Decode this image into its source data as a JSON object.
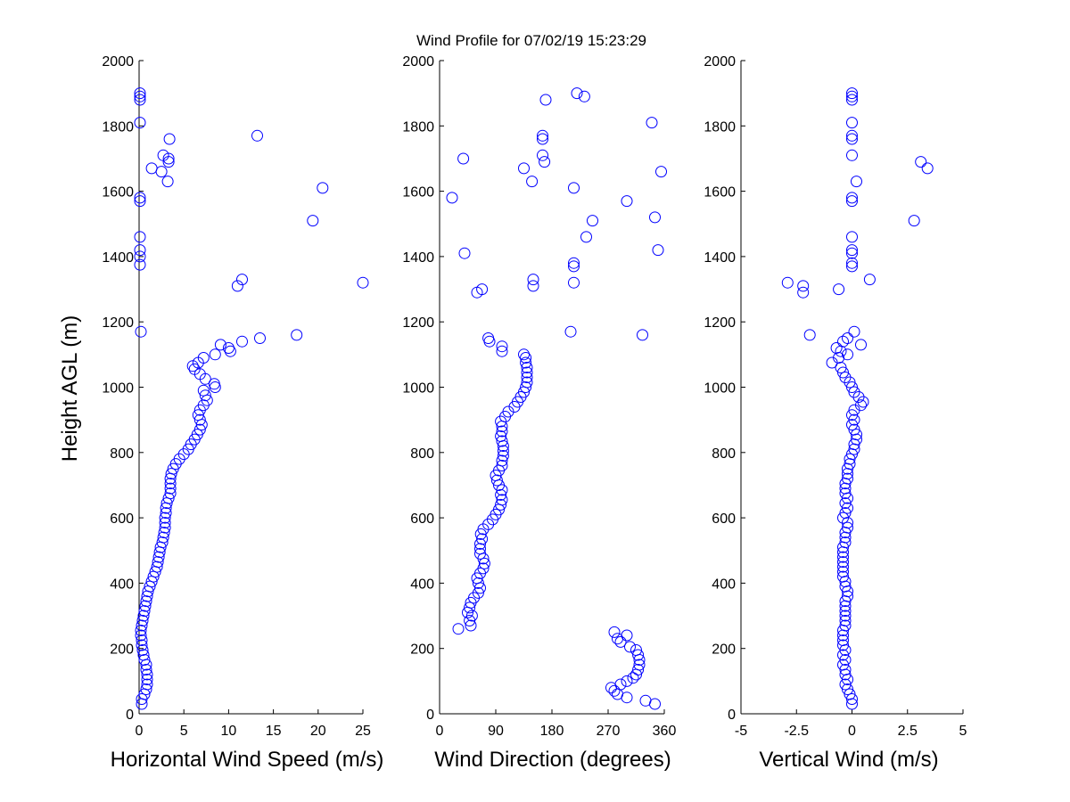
{
  "title": "Wind Profile for  07/02/19 15:23:29",
  "colors": {
    "marker": "#0000ff",
    "axis": "#000000",
    "background": "#ffffff"
  },
  "chart_data": [
    {
      "type": "scatter",
      "marker": "circle",
      "xlabel": "Horizontal Wind Speed (m/s)",
      "ylabel": "Height AGL (m)",
      "xlim": [
        0,
        25
      ],
      "ylim": [
        0,
        2000
      ],
      "xticks": [
        "0",
        "5",
        "10",
        "15",
        "20",
        "25"
      ],
      "yticks": [
        "0",
        "200",
        "400",
        "600",
        "800",
        "1000",
        "1200",
        "1400",
        "1600",
        "1800",
        "2000"
      ],
      "grid": false,
      "points": [
        [
          0.3,
          30
        ],
        [
          0.3,
          45
        ],
        [
          0.6,
          60
        ],
        [
          0.8,
          75
        ],
        [
          0.9,
          90
        ],
        [
          0.9,
          105
        ],
        [
          0.9,
          120
        ],
        [
          0.8,
          135
        ],
        [
          0.8,
          150
        ],
        [
          0.6,
          165
        ],
        [
          0.5,
          180
        ],
        [
          0.4,
          195
        ],
        [
          0.3,
          210
        ],
        [
          0.3,
          225
        ],
        [
          0.2,
          240
        ],
        [
          0.2,
          255
        ],
        [
          0.3,
          270
        ],
        [
          0.4,
          285
        ],
        [
          0.5,
          300
        ],
        [
          0.6,
          315
        ],
        [
          0.7,
          330
        ],
        [
          0.8,
          345
        ],
        [
          0.9,
          360
        ],
        [
          1.0,
          375
        ],
        [
          1.2,
          390
        ],
        [
          1.4,
          405
        ],
        [
          1.6,
          420
        ],
        [
          1.8,
          435
        ],
        [
          2.0,
          450
        ],
        [
          2.1,
          465
        ],
        [
          2.2,
          480
        ],
        [
          2.3,
          495
        ],
        [
          2.4,
          510
        ],
        [
          2.6,
          525
        ],
        [
          2.7,
          540
        ],
        [
          2.8,
          555
        ],
        [
          2.9,
          570
        ],
        [
          2.9,
          585
        ],
        [
          2.9,
          600
        ],
        [
          3.0,
          615
        ],
        [
          3.0,
          630
        ],
        [
          3.1,
          645
        ],
        [
          3.3,
          660
        ],
        [
          3.5,
          675
        ],
        [
          3.5,
          690
        ],
        [
          3.5,
          705
        ],
        [
          3.5,
          720
        ],
        [
          3.6,
          735
        ],
        [
          3.8,
          750
        ],
        [
          4.1,
          765
        ],
        [
          4.5,
          780
        ],
        [
          5.0,
          795
        ],
        [
          5.5,
          810
        ],
        [
          5.8,
          825
        ],
        [
          6.2,
          840
        ],
        [
          6.5,
          855
        ],
        [
          6.8,
          870
        ],
        [
          7.0,
          885
        ],
        [
          6.8,
          900
        ],
        [
          6.6,
          915
        ],
        [
          6.8,
          930
        ],
        [
          7.2,
          945
        ],
        [
          7.6,
          960
        ],
        [
          7.4,
          975
        ],
        [
          7.2,
          990
        ],
        [
          8.5,
          1000
        ],
        [
          8.4,
          1010
        ],
        [
          7.4,
          1025
        ],
        [
          6.8,
          1040
        ],
        [
          6.2,
          1055
        ],
        [
          6.0,
          1065
        ],
        [
          6.6,
          1075
        ],
        [
          7.2,
          1090
        ],
        [
          8.5,
          1100
        ],
        [
          10.2,
          1110
        ],
        [
          10.0,
          1120
        ],
        [
          9.1,
          1130
        ],
        [
          11.5,
          1140
        ],
        [
          13.5,
          1150
        ],
        [
          17.6,
          1160
        ],
        [
          0.2,
          1170
        ],
        [
          11.0,
          1310
        ],
        [
          11.5,
          1330
        ],
        [
          25.0,
          1320
        ],
        [
          0.1,
          1375
        ],
        [
          0.1,
          1400
        ],
        [
          0.1,
          1420
        ],
        [
          0.1,
          1460
        ],
        [
          19.4,
          1510
        ],
        [
          0.1,
          1570
        ],
        [
          0.1,
          1580
        ],
        [
          20.5,
          1610
        ],
        [
          3.2,
          1630
        ],
        [
          2.5,
          1660
        ],
        [
          1.4,
          1670
        ],
        [
          3.3,
          1690
        ],
        [
          3.3,
          1700
        ],
        [
          2.7,
          1710
        ],
        [
          3.4,
          1760
        ],
        [
          13.2,
          1770
        ],
        [
          0.1,
          1810
        ],
        [
          0.1,
          1880
        ],
        [
          0.1,
          1890
        ],
        [
          0.1,
          1900
        ]
      ]
    },
    {
      "type": "scatter",
      "marker": "circle",
      "xlabel": "Wind Direction (degrees)",
      "xlim": [
        0,
        360
      ],
      "ylim": [
        0,
        2000
      ],
      "xticks": [
        "0",
        "90",
        "180",
        "270",
        "360"
      ],
      "yticks": [
        "0",
        "200",
        "400",
        "600",
        "800",
        "1000",
        "1200",
        "1400",
        "1600",
        "1800",
        "2000"
      ],
      "grid": false,
      "points": [
        [
          345,
          30
        ],
        [
          330,
          40
        ],
        [
          300,
          50
        ],
        [
          285,
          60
        ],
        [
          280,
          70
        ],
        [
          275,
          80
        ],
        [
          290,
          90
        ],
        [
          300,
          100
        ],
        [
          310,
          110
        ],
        [
          315,
          120
        ],
        [
          318,
          135
        ],
        [
          320,
          150
        ],
        [
          320,
          165
        ],
        [
          318,
          180
        ],
        [
          315,
          195
        ],
        [
          305,
          205
        ],
        [
          290,
          220
        ],
        [
          285,
          230
        ],
        [
          300,
          240
        ],
        [
          280,
          250
        ],
        [
          30,
          260
        ],
        [
          50,
          270
        ],
        [
          48,
          285
        ],
        [
          52,
          300
        ],
        [
          45,
          310
        ],
        [
          48,
          325
        ],
        [
          50,
          340
        ],
        [
          55,
          355
        ],
        [
          62,
          370
        ],
        [
          65,
          385
        ],
        [
          62,
          400
        ],
        [
          60,
          415
        ],
        [
          65,
          430
        ],
        [
          70,
          445
        ],
        [
          72,
          460
        ],
        [
          70,
          475
        ],
        [
          65,
          490
        ],
        [
          65,
          505
        ],
        [
          65,
          520
        ],
        [
          68,
          535
        ],
        [
          66,
          550
        ],
        [
          70,
          565
        ],
        [
          78,
          580
        ],
        [
          85,
          595
        ],
        [
          90,
          610
        ],
        [
          95,
          625
        ],
        [
          98,
          640
        ],
        [
          100,
          655
        ],
        [
          98,
          670
        ],
        [
          100,
          685
        ],
        [
          95,
          700
        ],
        [
          92,
          715
        ],
        [
          90,
          730
        ],
        [
          95,
          745
        ],
        [
          100,
          760
        ],
        [
          100,
          775
        ],
        [
          102,
          790
        ],
        [
          102,
          805
        ],
        [
          102,
          820
        ],
        [
          100,
          835
        ],
        [
          98,
          850
        ],
        [
          100,
          865
        ],
        [
          100,
          880
        ],
        [
          98,
          895
        ],
        [
          105,
          910
        ],
        [
          110,
          925
        ],
        [
          120,
          940
        ],
        [
          125,
          955
        ],
        [
          130,
          970
        ],
        [
          135,
          985
        ],
        [
          138,
          1000
        ],
        [
          140,
          1015
        ],
        [
          140,
          1030
        ],
        [
          140,
          1045
        ],
        [
          140,
          1060
        ],
        [
          138,
          1075
        ],
        [
          138,
          1090
        ],
        [
          135,
          1100
        ],
        [
          100,
          1110
        ],
        [
          100,
          1125
        ],
        [
          80,
          1140
        ],
        [
          78,
          1150
        ],
        [
          325,
          1160
        ],
        [
          210,
          1170
        ],
        [
          60,
          1290
        ],
        [
          68,
          1300
        ],
        [
          150,
          1310
        ],
        [
          215,
          1320
        ],
        [
          150,
          1330
        ],
        [
          215,
          1370
        ],
        [
          215,
          1380
        ],
        [
          40,
          1410
        ],
        [
          350,
          1420
        ],
        [
          235,
          1460
        ],
        [
          245,
          1510
        ],
        [
          345,
          1520
        ],
        [
          300,
          1570
        ],
        [
          20,
          1580
        ],
        [
          215,
          1610
        ],
        [
          148,
          1630
        ],
        [
          355,
          1660
        ],
        [
          135,
          1670
        ],
        [
          168,
          1690
        ],
        [
          38,
          1700
        ],
        [
          165,
          1710
        ],
        [
          165,
          1760
        ],
        [
          165,
          1770
        ],
        [
          340,
          1810
        ],
        [
          170,
          1880
        ],
        [
          232,
          1890
        ],
        [
          220,
          1900
        ]
      ]
    },
    {
      "type": "scatter",
      "marker": "circle",
      "xlabel": "Vertical Wind (m/s)",
      "xlim": [
        -5,
        5
      ],
      "ylim": [
        0,
        2000
      ],
      "xticks": [
        "-5",
        "-2.5",
        "0",
        "2.5",
        "5"
      ],
      "yticks": [
        "0",
        "200",
        "400",
        "600",
        "800",
        "1000",
        "1200",
        "1400",
        "1600",
        "1800",
        "2000"
      ],
      "grid": false,
      "points": [
        [
          0.0,
          30
        ],
        [
          0.0,
          45
        ],
        [
          -0.1,
          60
        ],
        [
          -0.2,
          75
        ],
        [
          -0.3,
          90
        ],
        [
          -0.2,
          105
        ],
        [
          -0.3,
          120
        ],
        [
          -0.3,
          135
        ],
        [
          -0.4,
          150
        ],
        [
          -0.3,
          165
        ],
        [
          -0.4,
          180
        ],
        [
          -0.3,
          195
        ],
        [
          -0.4,
          210
        ],
        [
          -0.4,
          225
        ],
        [
          -0.4,
          240
        ],
        [
          -0.4,
          255
        ],
        [
          -0.3,
          270
        ],
        [
          -0.3,
          285
        ],
        [
          -0.3,
          300
        ],
        [
          -0.3,
          315
        ],
        [
          -0.3,
          330
        ],
        [
          -0.3,
          345
        ],
        [
          -0.2,
          360
        ],
        [
          -0.2,
          375
        ],
        [
          -0.3,
          390
        ],
        [
          -0.3,
          405
        ],
        [
          -0.4,
          420
        ],
        [
          -0.4,
          435
        ],
        [
          -0.4,
          450
        ],
        [
          -0.4,
          465
        ],
        [
          -0.4,
          480
        ],
        [
          -0.4,
          495
        ],
        [
          -0.4,
          510
        ],
        [
          -0.3,
          525
        ],
        [
          -0.3,
          540
        ],
        [
          -0.3,
          555
        ],
        [
          -0.2,
          570
        ],
        [
          -0.2,
          585
        ],
        [
          -0.4,
          600
        ],
        [
          -0.3,
          615
        ],
        [
          -0.2,
          630
        ],
        [
          -0.3,
          645
        ],
        [
          -0.2,
          660
        ],
        [
          -0.3,
          675
        ],
        [
          -0.3,
          690
        ],
        [
          -0.3,
          705
        ],
        [
          -0.2,
          720
        ],
        [
          -0.2,
          735
        ],
        [
          -0.2,
          750
        ],
        [
          -0.1,
          765
        ],
        [
          -0.1,
          780
        ],
        [
          0.0,
          795
        ],
        [
          0.1,
          810
        ],
        [
          0.1,
          825
        ],
        [
          0.2,
          840
        ],
        [
          0.2,
          855
        ],
        [
          0.1,
          870
        ],
        [
          0.0,
          885
        ],
        [
          0.1,
          900
        ],
        [
          0.0,
          915
        ],
        [
          0.1,
          930
        ],
        [
          0.4,
          945
        ],
        [
          0.5,
          955
        ],
        [
          0.3,
          970
        ],
        [
          0.1,
          985
        ],
        [
          0.0,
          1000
        ],
        [
          -0.1,
          1015
        ],
        [
          -0.3,
          1030
        ],
        [
          -0.4,
          1045
        ],
        [
          -0.5,
          1060
        ],
        [
          -0.9,
          1075
        ],
        [
          -0.6,
          1090
        ],
        [
          -0.2,
          1100
        ],
        [
          -0.5,
          1110
        ],
        [
          -0.7,
          1120
        ],
        [
          0.4,
          1130
        ],
        [
          -0.4,
          1140
        ],
        [
          -0.2,
          1150
        ],
        [
          -1.9,
          1160
        ],
        [
          0.1,
          1170
        ],
        [
          -2.2,
          1290
        ],
        [
          -0.6,
          1300
        ],
        [
          -2.2,
          1310
        ],
        [
          -2.9,
          1320
        ],
        [
          0.8,
          1330
        ],
        [
          0.0,
          1370
        ],
        [
          0.0,
          1380
        ],
        [
          0.0,
          1410
        ],
        [
          0.0,
          1420
        ],
        [
          0.0,
          1460
        ],
        [
          2.8,
          1510
        ],
        [
          0.0,
          1570
        ],
        [
          0.0,
          1580
        ],
        [
          0.2,
          1630
        ],
        [
          3.4,
          1670
        ],
        [
          3.1,
          1690
        ],
        [
          0.0,
          1710
        ],
        [
          0.0,
          1760
        ],
        [
          0.0,
          1770
        ],
        [
          0.0,
          1810
        ],
        [
          0.0,
          1880
        ],
        [
          0.0,
          1890
        ],
        [
          0.0,
          1900
        ]
      ]
    }
  ]
}
